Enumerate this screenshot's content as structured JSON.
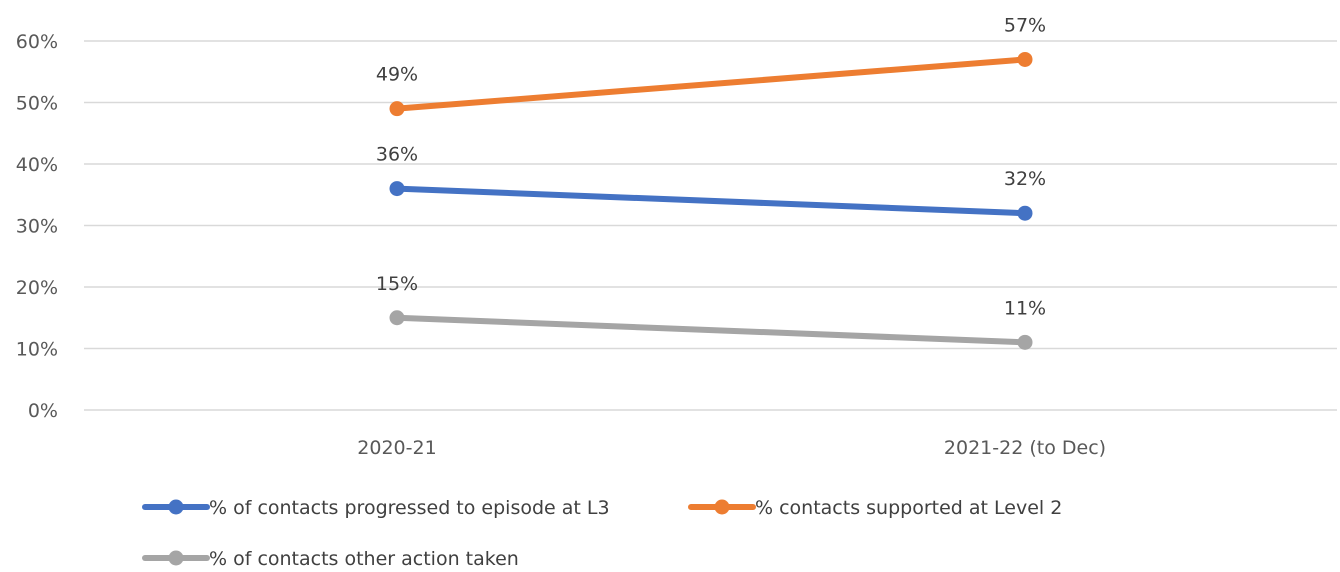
{
  "chart_data": {
    "type": "line",
    "title": "",
    "xlabel": "",
    "ylabel": "",
    "categories": [
      "2020-21",
      "2021-22 (to Dec)"
    ],
    "ylim": [
      0,
      60
    ],
    "yticks": [
      0,
      10,
      20,
      30,
      40,
      50,
      60
    ],
    "ytick_labels": [
      "0%",
      "10%",
      "20%",
      "30%",
      "40%",
      "50%",
      "60%"
    ],
    "grid": true,
    "legend_position": "bottom",
    "series": [
      {
        "name": "% of contacts progressed to episode at L3",
        "values": [
          36,
          32
        ],
        "labels": [
          "36%",
          "32%"
        ],
        "color": "#4472c4"
      },
      {
        "name": "% contacts supported at Level 2",
        "values": [
          49,
          57
        ],
        "labels": [
          "49%",
          "57%"
        ],
        "color": "#ed7d31"
      },
      {
        "name": "% of contacts other action taken",
        "values": [
          15,
          11
        ],
        "labels": [
          "15%",
          "11%"
        ],
        "color": "#a5a5a5"
      }
    ]
  }
}
